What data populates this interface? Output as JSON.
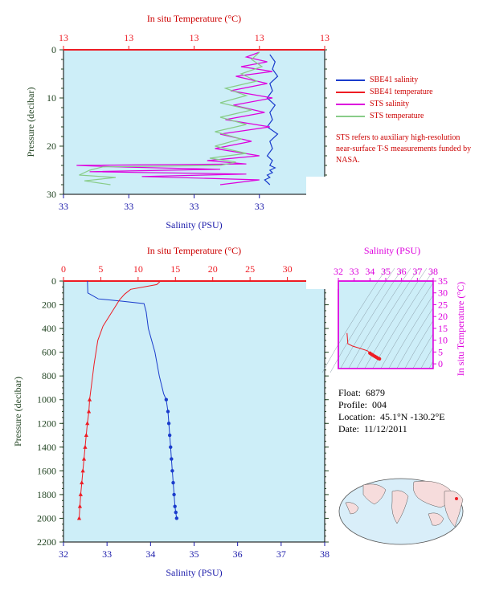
{
  "colors": {
    "plot_bg": "#cdeef8",
    "red": "#ee1c24",
    "blue": "#1a3ccc",
    "magenta": "#dd00dd",
    "green": "#88cc88",
    "dark_green": "#224422",
    "axis_blue": "#1a1aaa",
    "temp_label": "#cc0000"
  },
  "legend": {
    "items": [
      {
        "label": "SBE41 salinity",
        "color": "#1a3ccc"
      },
      {
        "label": "SBE41 temperature",
        "color": "#ee1c24"
      },
      {
        "label": "STS salinity",
        "color": "#dd00dd"
      },
      {
        "label": "STS temperature",
        "color": "#88cc88"
      }
    ],
    "note": "STS refers to auxiliary high-resolution near-surface T-S measurements funded by NASA."
  },
  "info": {
    "float_label": "Float:",
    "float_value": "6879",
    "profile_label": "Profile:",
    "profile_value": "004",
    "location_label": "Location:",
    "location_value": "45.1°N  -130.2°E",
    "date_label": "Date:",
    "date_value": "11/12/2011"
  },
  "footer": "",
  "chart_data": [
    {
      "type": "line",
      "title": "",
      "top_axis_label": "In situ Temperature (°C)",
      "top_ticks": [
        "13",
        "13",
        "13",
        "13",
        "13"
      ],
      "xlabel": "Salinity (PSU)",
      "bottom_ticks": [
        "33",
        "33",
        "33",
        "33",
        "33"
      ],
      "ylabel": "Pressure (decibar)",
      "yticks": [
        0,
        10,
        20,
        30
      ],
      "ylim": [
        30,
        0
      ],
      "series": [
        {
          "name": "SBE41 salinity",
          "x_norm": [
            0.79,
            0.81,
            0.8,
            0.82,
            0.79,
            0.8,
            0.78,
            0.81,
            0.79,
            0.8,
            0.78,
            0.82,
            0.79,
            0.8,
            0.78,
            0.8,
            0.79,
            0.81,
            0.79,
            0.8,
            0.78,
            0.79,
            0.77,
            0.79
          ],
          "y": [
            1,
            2.5,
            4,
            5.5,
            7,
            8.5,
            10,
            11.5,
            13,
            14.5,
            16,
            17.5,
            19,
            20.5,
            22,
            23,
            24,
            24.5,
            25,
            25.5,
            26,
            26.5,
            27,
            28
          ]
        },
        {
          "name": "STS salinity",
          "x_norm": [
            0.75,
            0.7,
            0.78,
            0.68,
            0.8,
            0.66,
            0.78,
            0.64,
            0.8,
            0.65,
            0.77,
            0.62,
            0.79,
            0.6,
            0.72,
            0.58,
            0.75,
            0.55,
            0.7,
            0.05,
            0.2,
            0.6,
            0.1,
            0.7,
            0.3,
            0.75,
            0.6
          ],
          "y": [
            0.5,
            1.5,
            2.5,
            3.5,
            4.5,
            5.5,
            7,
            8.5,
            10,
            11.5,
            13,
            14.5,
            16,
            17.5,
            19,
            20.5,
            22,
            23,
            23.7,
            24,
            24.3,
            24.8,
            25.3,
            25.8,
            26.3,
            27,
            28
          ]
        },
        {
          "name": "STS temperature",
          "x_norm": [
            0.75,
            0.72,
            0.76,
            0.68,
            0.74,
            0.62,
            0.7,
            0.6,
            0.72,
            0.6,
            0.7,
            0.58,
            0.68,
            0.58,
            0.7,
            0.56,
            0.66,
            0.6,
            0.15,
            0.1,
            0.06,
            0.2,
            0.08,
            0.18
          ],
          "y": [
            0.5,
            2,
            3.5,
            5,
            6.5,
            8,
            9.5,
            11,
            12.5,
            14,
            15.5,
            17,
            18.5,
            20,
            21.5,
            22.5,
            23.3,
            24,
            24.3,
            25,
            26,
            26.5,
            27.2,
            28
          ]
        },
        {
          "name": "SBE41 temperature",
          "x_norm": [
            0,
            1
          ],
          "y": [
            0,
            0
          ]
        }
      ]
    },
    {
      "type": "line",
      "title": "",
      "top_axis_label": "In situ Temperature (°C)",
      "top_ticks": [
        0,
        5,
        10,
        15,
        20,
        25,
        30,
        35
      ],
      "xlim_top": [
        0,
        35
      ],
      "xlabel": "Salinity (PSU)",
      "bottom_ticks": [
        32,
        33,
        34,
        35,
        36,
        37,
        38
      ],
      "xlim": [
        32,
        38
      ],
      "ylabel": "Pressure (decibar)",
      "yticks": [
        0,
        200,
        400,
        600,
        800,
        1000,
        1200,
        1400,
        1600,
        1800,
        2000,
        2200
      ],
      "ylim": [
        2200,
        0
      ],
      "series": [
        {
          "name": "Salinity",
          "axis": "bottom",
          "x": [
            32.55,
            32.56,
            32.8,
            33.35,
            33.85,
            33.9,
            33.95,
            34.1,
            34.2,
            34.3,
            34.36,
            34.4,
            34.42,
            34.44,
            34.46,
            34.48,
            34.5,
            34.52,
            34.54,
            34.56,
            34.58,
            34.6
          ],
          "y": [
            0,
            100,
            150,
            170,
            190,
            260,
            400,
            600,
            800,
            950,
            1000,
            1100,
            1200,
            1300,
            1400,
            1500,
            1600,
            1700,
            1800,
            1900,
            1950,
            2000
          ]
        },
        {
          "name": "Temperature",
          "axis": "top",
          "x": [
            13.0,
            12.5,
            9.0,
            8.2,
            7.5,
            6.8,
            5.3,
            4.6,
            4.1,
            3.7,
            3.5,
            3.4,
            3.2,
            3.05,
            2.9,
            2.75,
            2.6,
            2.45,
            2.3,
            2.2,
            2.1
          ],
          "y": [
            0,
            30,
            70,
            110,
            160,
            230,
            380,
            500,
            700,
            900,
            1000,
            1100,
            1200,
            1300,
            1400,
            1500,
            1600,
            1700,
            1800,
            1900,
            2000
          ]
        }
      ]
    },
    {
      "type": "scatter",
      "title": "",
      "top_axis_label": "Salinity (PSU)",
      "top_ticks": [
        32,
        33,
        34,
        35,
        36,
        37,
        38
      ],
      "xlim": [
        32,
        38
      ],
      "ylabel_right": "In situ Temperature (°C)",
      "right_ticks": [
        0,
        5,
        10,
        15,
        20,
        25,
        30,
        35
      ],
      "ylim": [
        -2,
        35
      ],
      "series": [
        {
          "name": "T-S",
          "x": [
            32.55,
            32.6,
            32.9,
            33.4,
            33.85,
            34.0,
            34.1,
            34.2,
            34.3,
            34.4,
            34.5,
            34.6
          ],
          "y": [
            13.0,
            8.5,
            7.5,
            6.5,
            5.5,
            4.5,
            4.0,
            3.6,
            3.2,
            2.8,
            2.4,
            2.1
          ]
        }
      ]
    }
  ]
}
